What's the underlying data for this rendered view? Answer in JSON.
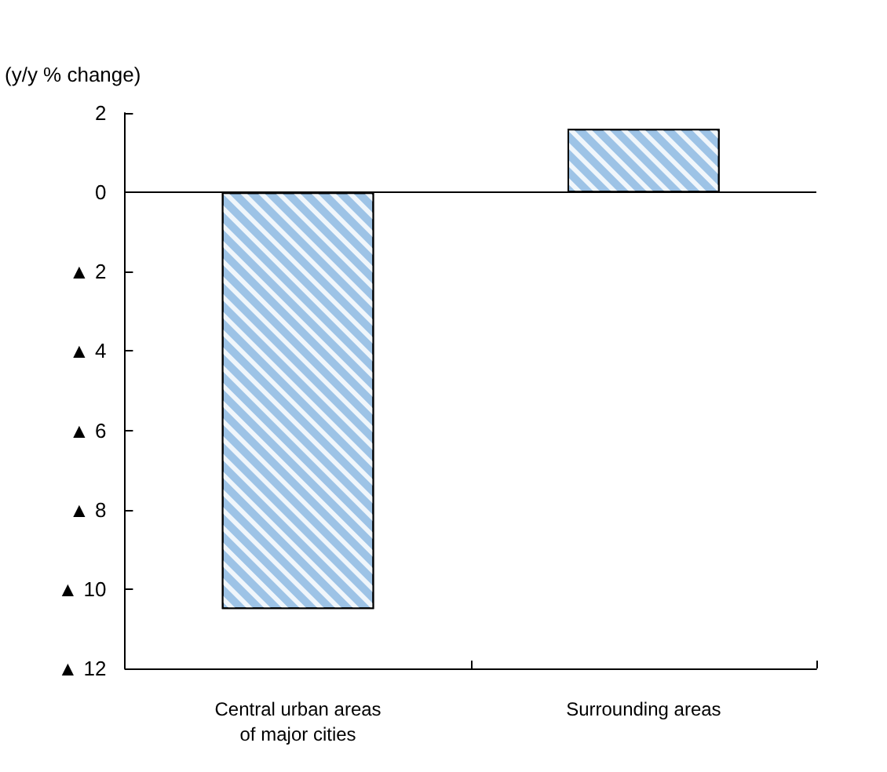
{
  "chart_data": {
    "type": "bar",
    "ylabel": "(y/y % change)",
    "categories": [
      "Central urban areas\nof major cities",
      "Surrounding areas"
    ],
    "values": [
      -10.5,
      1.6
    ],
    "color": "#9dc3e6",
    "ylim": [
      -12,
      2
    ],
    "yticks": [
      2,
      0,
      {
        "value": -2,
        "label": "▲ 2"
      },
      {
        "value": -4,
        "label": "▲ 4"
      },
      {
        "value": -6,
        "label": "▲ 6"
      },
      {
        "value": -8,
        "label": "▲ 8"
      },
      {
        "value": -10,
        "label": "▲ 10"
      },
      {
        "value": -12,
        "label": "▲ 12"
      }
    ],
    "ref_lines": [
      {
        "axis": "y",
        "value": 0,
        "color": "#000000"
      }
    ],
    "grid": false
  }
}
